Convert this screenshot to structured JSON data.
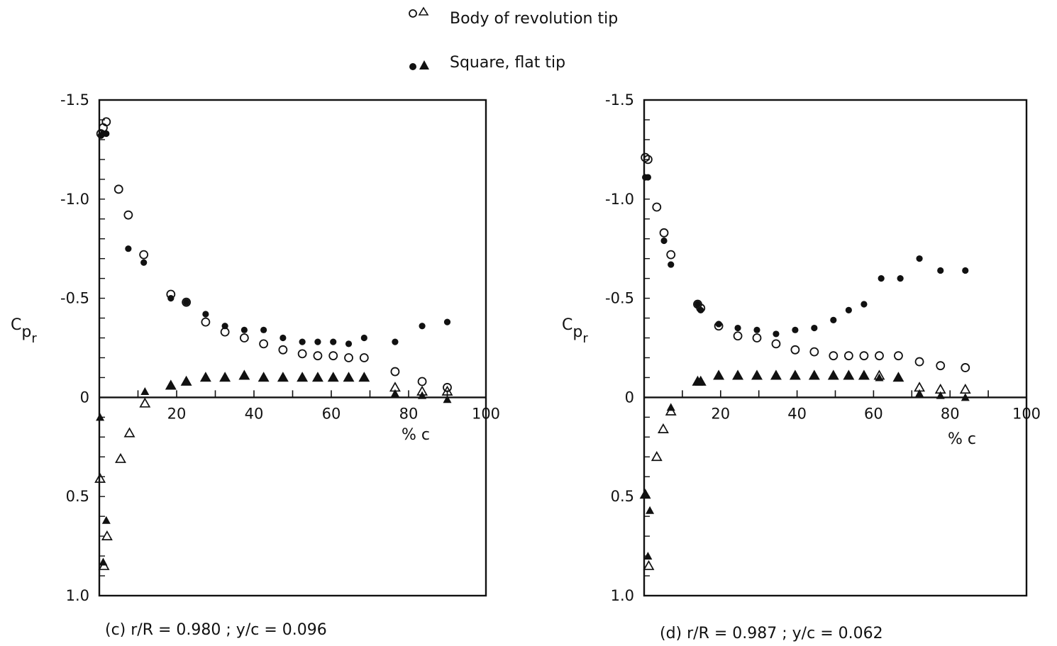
{
  "legend": {
    "entries": [
      {
        "symbols": "oΔ",
        "label": "Body of revolution tip"
      },
      {
        "symbols": "●▲",
        "label": "Square, flat tip"
      }
    ]
  },
  "colors": {
    "ink": "#111111",
    "background": "#ffffff"
  },
  "chart_data": [
    {
      "type": "scatter",
      "caption": "(c) r/R = 0.980 ;  y/c = 0.096",
      "xlabel": "% c",
      "ylabel": "Cpr",
      "xlim": [
        0,
        100
      ],
      "ylim": [
        1.0,
        -1.5
      ],
      "y_inverted": true,
      "xticks": [
        0,
        20,
        40,
        60,
        80,
        100
      ],
      "xtick_labels": [
        "20",
        "40",
        "60",
        "80",
        "100"
      ],
      "yticks": [
        -1.5,
        -1.0,
        -0.5,
        0,
        0.5,
        1.0
      ],
      "ytick_labels": [
        "-1.5",
        "-1.0",
        "-0.5",
        "0",
        "0.5",
        "1.0"
      ],
      "series": [
        {
          "name": "Body of revolution tip, upper surface",
          "marker": "open-circle",
          "x": [
            0.4,
            1.0,
            1.8,
            5.0,
            7.5,
            11.5,
            18.5,
            22.5,
            27.5,
            32.5,
            37.5,
            42.5,
            47.5,
            52.5,
            56.5,
            60.5,
            64.5,
            68.5,
            76.5,
            83.5,
            90.0
          ],
          "y": [
            -1.33,
            -1.36,
            -1.39,
            -1.05,
            -0.92,
            -0.72,
            -0.52,
            -0.48,
            -0.38,
            -0.33,
            -0.3,
            -0.27,
            -0.24,
            -0.22,
            -0.21,
            -0.21,
            -0.2,
            -0.2,
            -0.13,
            -0.08,
            -0.05
          ]
        },
        {
          "name": "Body of revolution tip, lower surface",
          "marker": "open-triangle",
          "x": [
            0.2,
            1.2,
            2.0,
            5.5,
            7.8,
            11.8,
            18.5,
            22.5,
            27.5,
            32.5,
            37.5,
            42.5,
            47.5,
            52.5,
            56.5,
            60.5,
            64.5,
            68.5,
            76.5,
            83.5,
            90.0
          ],
          "y": [
            0.41,
            0.85,
            0.7,
            0.31,
            0.18,
            0.03,
            -0.06,
            -0.08,
            -0.1,
            -0.1,
            -0.11,
            -0.1,
            -0.1,
            -0.1,
            -0.1,
            -0.1,
            -0.1,
            -0.1,
            -0.05,
            -0.03,
            -0.03
          ]
        },
        {
          "name": "Square, flat tip, upper surface",
          "marker": "filled-circle",
          "x": [
            0.4,
            1.0,
            1.8,
            7.5,
            11.5,
            18.5,
            22.5,
            27.5,
            32.5,
            37.5,
            42.5,
            47.5,
            52.5,
            56.5,
            60.5,
            64.5,
            68.5,
            76.5,
            83.5,
            90.0
          ],
          "y": [
            -1.32,
            -1.33,
            -1.33,
            -0.75,
            -0.68,
            -0.5,
            -0.48,
            -0.42,
            -0.36,
            -0.34,
            -0.34,
            -0.3,
            -0.28,
            -0.28,
            -0.28,
            -0.27,
            -0.3,
            -0.28,
            -0.36,
            -0.38
          ]
        },
        {
          "name": "Square, flat tip, lower surface",
          "marker": "filled-triangle",
          "x": [
            0.2,
            1.0,
            1.8,
            11.8,
            18.5,
            22.5,
            27.5,
            32.5,
            37.5,
            42.5,
            47.5,
            52.5,
            56.5,
            60.5,
            64.5,
            68.5,
            76.5,
            83.5,
            90.0
          ],
          "y": [
            0.1,
            0.83,
            0.62,
            -0.03,
            -0.06,
            -0.08,
            -0.1,
            -0.1,
            -0.11,
            -0.1,
            -0.1,
            -0.1,
            -0.1,
            -0.1,
            -0.1,
            -0.1,
            -0.02,
            -0.01,
            0.01
          ]
        }
      ]
    },
    {
      "type": "scatter",
      "caption": "(d)  r/R = 0.987 ;  y/c = 0.062",
      "xlabel": "% c",
      "ylabel": "Cpr",
      "xlim": [
        0,
        100
      ],
      "ylim": [
        1.0,
        -1.5
      ],
      "y_inverted": true,
      "xticks": [
        0,
        20,
        40,
        60,
        80,
        100
      ],
      "xtick_labels": [
        "20",
        "40",
        "60",
        "80",
        "100"
      ],
      "yticks": [
        -1.5,
        -1.0,
        -0.5,
        0,
        0.5,
        1.0
      ],
      "ytick_labels": [
        "-1.5",
        "-1.0",
        "-0.5",
        "0",
        "0.5",
        "1.0"
      ],
      "series": [
        {
          "name": "Body of revolution tip, upper surface",
          "marker": "open-circle",
          "x": [
            0.3,
            1.0,
            3.3,
            5.2,
            7.0,
            14.0,
            14.8,
            19.5,
            24.5,
            29.5,
            34.5,
            39.5,
            44.5,
            49.5,
            53.5,
            57.5,
            61.5,
            66.5,
            72.0,
            77.5,
            84.0
          ],
          "y": [
            -1.21,
            -1.2,
            -0.96,
            -0.83,
            -0.72,
            -0.47,
            -0.45,
            -0.36,
            -0.31,
            -0.3,
            -0.27,
            -0.24,
            -0.23,
            -0.21,
            -0.21,
            -0.21,
            -0.21,
            -0.21,
            -0.18,
            -0.16,
            -0.15
          ]
        },
        {
          "name": "Body of revolution tip, lower surface",
          "marker": "open-triangle",
          "x": [
            0.3,
            1.2,
            3.3,
            5.0,
            7.0,
            14.0,
            14.8,
            19.5,
            24.5,
            29.5,
            34.5,
            39.5,
            44.5,
            49.5,
            53.5,
            57.5,
            61.5,
            66.5,
            72.0,
            77.5,
            84.0
          ],
          "y": [
            0.49,
            0.85,
            0.3,
            0.16,
            0.07,
            -0.08,
            -0.08,
            -0.11,
            -0.11,
            -0.11,
            -0.11,
            -0.11,
            -0.11,
            -0.11,
            -0.11,
            -0.11,
            -0.11,
            -0.1,
            -0.05,
            -0.04,
            -0.04
          ]
        },
        {
          "name": "Square, flat tip, upper surface",
          "marker": "filled-circle",
          "x": [
            0.3,
            1.0,
            5.2,
            7.0,
            14.0,
            14.8,
            19.5,
            24.5,
            29.5,
            34.5,
            39.5,
            44.5,
            49.5,
            53.5,
            57.5,
            62.0,
            67.0,
            72.0,
            77.5,
            84.0
          ],
          "y": [
            -1.11,
            -1.11,
            -0.79,
            -0.67,
            -0.47,
            -0.44,
            -0.37,
            -0.35,
            -0.34,
            -0.32,
            -0.34,
            -0.35,
            -0.39,
            -0.44,
            -0.47,
            -0.6,
            -0.6,
            -0.7,
            -0.64,
            -0.64
          ]
        },
        {
          "name": "Square, flat tip, lower surface",
          "marker": "filled-triangle",
          "x": [
            0.3,
            1.0,
            1.5,
            7.0,
            14.0,
            14.8,
            19.5,
            24.5,
            29.5,
            34.5,
            39.5,
            44.5,
            49.5,
            53.5,
            57.5,
            61.5,
            66.5,
            72.0,
            77.5,
            84.0
          ],
          "y": [
            0.49,
            0.8,
            0.57,
            0.05,
            -0.08,
            -0.08,
            -0.11,
            -0.11,
            -0.11,
            -0.11,
            -0.11,
            -0.11,
            -0.11,
            -0.11,
            -0.11,
            -0.1,
            -0.1,
            -0.02,
            -0.01,
            0.0
          ]
        }
      ]
    }
  ]
}
